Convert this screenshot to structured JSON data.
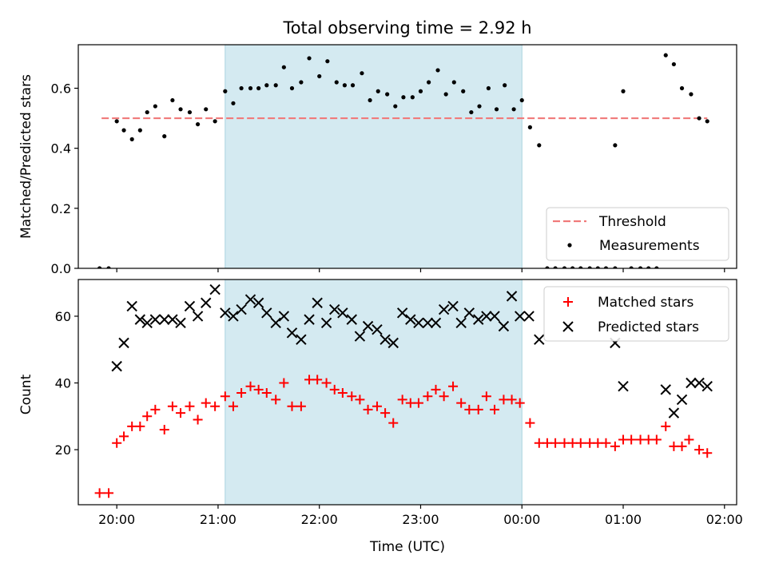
{
  "figure": {
    "title": "Total observing time = 2.92 h",
    "xlabel": "Time (UTC)",
    "colors": {
      "threshold": "#f07b7b",
      "band": "#d4eaf1",
      "band_edge": "#a9d2df",
      "measurement": "#000000",
      "matched": "#ff0000",
      "predicted": "#000000"
    }
  },
  "chart_data": [
    {
      "type": "scatter",
      "title": "Total observing time = 2.92 h",
      "xlabel": "",
      "ylabel": "Matched/Predicted stars",
      "xlim": [
        19.62,
        26.12
      ],
      "ylim": [
        0,
        0.745
      ],
      "x_ticks": [
        20,
        21,
        22,
        23,
        24,
        25,
        26
      ],
      "x_tick_labels": [],
      "y_ticks": [
        0,
        0.2,
        0.4,
        0.6
      ],
      "y_tick_labels": [
        "0.0",
        "0.2",
        "0.4",
        "0.6"
      ],
      "shaded_span": [
        21.07,
        24.0
      ],
      "grid": false,
      "legend_position": "lower right",
      "threshold": {
        "name": "Threshold",
        "value": 0.5,
        "x_range": [
          19.85,
          25.83
        ],
        "style": "dashed"
      },
      "series": [
        {
          "name": "Measurements",
          "marker": "dot",
          "points": [
            [
              19.83,
              0.0
            ],
            [
              19.92,
              0.0
            ],
            [
              20.0,
              0.49
            ],
            [
              20.07,
              0.46
            ],
            [
              20.15,
              0.43
            ],
            [
              20.23,
              0.46
            ],
            [
              20.3,
              0.52
            ],
            [
              20.38,
              0.54
            ],
            [
              20.47,
              0.44
            ],
            [
              20.55,
              0.56
            ],
            [
              20.63,
              0.53
            ],
            [
              20.72,
              0.52
            ],
            [
              20.8,
              0.48
            ],
            [
              20.88,
              0.53
            ],
            [
              20.97,
              0.49
            ],
            [
              21.07,
              0.59
            ],
            [
              21.15,
              0.55
            ],
            [
              21.23,
              0.6
            ],
            [
              21.32,
              0.6
            ],
            [
              21.4,
              0.6
            ],
            [
              21.48,
              0.61
            ],
            [
              21.57,
              0.61
            ],
            [
              21.65,
              0.67
            ],
            [
              21.73,
              0.6
            ],
            [
              21.82,
              0.62
            ],
            [
              21.9,
              0.7
            ],
            [
              22.0,
              0.64
            ],
            [
              22.08,
              0.69
            ],
            [
              22.17,
              0.62
            ],
            [
              22.25,
              0.61
            ],
            [
              22.33,
              0.61
            ],
            [
              22.42,
              0.65
            ],
            [
              22.5,
              0.56
            ],
            [
              22.58,
              0.59
            ],
            [
              22.67,
              0.58
            ],
            [
              22.75,
              0.54
            ],
            [
              22.83,
              0.57
            ],
            [
              22.92,
              0.57
            ],
            [
              23.0,
              0.59
            ],
            [
              23.08,
              0.62
            ],
            [
              23.17,
              0.66
            ],
            [
              23.25,
              0.58
            ],
            [
              23.33,
              0.62
            ],
            [
              23.42,
              0.59
            ],
            [
              23.5,
              0.52
            ],
            [
              23.58,
              0.54
            ],
            [
              23.67,
              0.6
            ],
            [
              23.75,
              0.53
            ],
            [
              23.83,
              0.61
            ],
            [
              23.92,
              0.53
            ],
            [
              24.0,
              0.56
            ],
            [
              24.08,
              0.47
            ],
            [
              24.17,
              0.41
            ],
            [
              24.25,
              0.0
            ],
            [
              24.33,
              0.0
            ],
            [
              24.42,
              0.0
            ],
            [
              24.5,
              0.0
            ],
            [
              24.58,
              0.0
            ],
            [
              24.67,
              0.0
            ],
            [
              24.75,
              0.0
            ],
            [
              24.83,
              0.0
            ],
            [
              24.92,
              0.0
            ],
            [
              24.92,
              0.41
            ],
            [
              25.0,
              0.59
            ],
            [
              25.08,
              0.0
            ],
            [
              25.17,
              0.0
            ],
            [
              25.25,
              0.0
            ],
            [
              25.33,
              0.0
            ],
            [
              25.42,
              0.71
            ],
            [
              25.5,
              0.68
            ],
            [
              25.58,
              0.6
            ],
            [
              25.67,
              0.58
            ],
            [
              25.75,
              0.5
            ],
            [
              25.83,
              0.49
            ]
          ]
        }
      ]
    },
    {
      "type": "scatter",
      "title": "",
      "xlabel": "Time (UTC)",
      "ylabel": "Count",
      "xlim": [
        19.62,
        26.12
      ],
      "ylim": [
        3.5,
        71
      ],
      "x_ticks": [
        20,
        21,
        22,
        23,
        24,
        25,
        26
      ],
      "x_tick_labels": [
        "20:00",
        "21:00",
        "22:00",
        "23:00",
        "00:00",
        "01:00",
        "02:00"
      ],
      "y_ticks": [
        20,
        40,
        60
      ],
      "y_tick_labels": [
        "20",
        "40",
        "60"
      ],
      "shaded_span": [
        21.07,
        24.0
      ],
      "grid": false,
      "legend_position": "upper right",
      "series": [
        {
          "name": "Matched stars",
          "marker": "plus",
          "points": [
            [
              19.83,
              7
            ],
            [
              19.92,
              7
            ],
            [
              20.0,
              22
            ],
            [
              20.07,
              24
            ],
            [
              20.15,
              27
            ],
            [
              20.23,
              27
            ],
            [
              20.3,
              30
            ],
            [
              20.38,
              32
            ],
            [
              20.47,
              26
            ],
            [
              20.55,
              33
            ],
            [
              20.63,
              31
            ],
            [
              20.72,
              33
            ],
            [
              20.8,
              29
            ],
            [
              20.88,
              34
            ],
            [
              20.97,
              33
            ],
            [
              21.07,
              36
            ],
            [
              21.15,
              33
            ],
            [
              21.23,
              37
            ],
            [
              21.32,
              39
            ],
            [
              21.4,
              38
            ],
            [
              21.48,
              37
            ],
            [
              21.57,
              35
            ],
            [
              21.65,
              40
            ],
            [
              21.73,
              33
            ],
            [
              21.82,
              33
            ],
            [
              21.9,
              41
            ],
            [
              21.98,
              41
            ],
            [
              22.07,
              40
            ],
            [
              22.15,
              38
            ],
            [
              22.23,
              37
            ],
            [
              22.32,
              36
            ],
            [
              22.4,
              35
            ],
            [
              22.48,
              32
            ],
            [
              22.57,
              33
            ],
            [
              22.65,
              31
            ],
            [
              22.73,
              28
            ],
            [
              22.82,
              35
            ],
            [
              22.9,
              34
            ],
            [
              22.98,
              34
            ],
            [
              23.07,
              36
            ],
            [
              23.15,
              38
            ],
            [
              23.23,
              36
            ],
            [
              23.32,
              39
            ],
            [
              23.4,
              34
            ],
            [
              23.48,
              32
            ],
            [
              23.57,
              32
            ],
            [
              23.65,
              36
            ],
            [
              23.73,
              32
            ],
            [
              23.82,
              35
            ],
            [
              23.9,
              35
            ],
            [
              23.98,
              34
            ],
            [
              24.08,
              28
            ],
            [
              24.17,
              22
            ],
            [
              24.25,
              22
            ],
            [
              24.33,
              22
            ],
            [
              24.42,
              22
            ],
            [
              24.5,
              22
            ],
            [
              24.58,
              22
            ],
            [
              24.67,
              22
            ],
            [
              24.75,
              22
            ],
            [
              24.83,
              22
            ],
            [
              24.92,
              21
            ],
            [
              25.0,
              23
            ],
            [
              25.08,
              23
            ],
            [
              25.17,
              23
            ],
            [
              25.25,
              23
            ],
            [
              25.33,
              23
            ],
            [
              25.42,
              27
            ],
            [
              25.5,
              21
            ],
            [
              25.58,
              21
            ],
            [
              25.65,
              23
            ],
            [
              25.75,
              20
            ],
            [
              25.83,
              19
            ]
          ]
        },
        {
          "name": "Predicted stars",
          "marker": "x",
          "points": [
            [
              20.0,
              45
            ],
            [
              20.07,
              52
            ],
            [
              20.15,
              63
            ],
            [
              20.23,
              59
            ],
            [
              20.3,
              58
            ],
            [
              20.38,
              59
            ],
            [
              20.47,
              59
            ],
            [
              20.55,
              59
            ],
            [
              20.63,
              58
            ],
            [
              20.72,
              63
            ],
            [
              20.8,
              60
            ],
            [
              20.88,
              64
            ],
            [
              20.97,
              68
            ],
            [
              21.07,
              61
            ],
            [
              21.15,
              60
            ],
            [
              21.23,
              62
            ],
            [
              21.32,
              65
            ],
            [
              21.4,
              64
            ],
            [
              21.48,
              61
            ],
            [
              21.57,
              58
            ],
            [
              21.65,
              60
            ],
            [
              21.73,
              55
            ],
            [
              21.82,
              53
            ],
            [
              21.9,
              59
            ],
            [
              21.98,
              64
            ],
            [
              22.07,
              58
            ],
            [
              22.15,
              62
            ],
            [
              22.23,
              61
            ],
            [
              22.32,
              59
            ],
            [
              22.4,
              54
            ],
            [
              22.48,
              57
            ],
            [
              22.57,
              56
            ],
            [
              22.65,
              53
            ],
            [
              22.73,
              52
            ],
            [
              22.82,
              61
            ],
            [
              22.9,
              59
            ],
            [
              22.98,
              58
            ],
            [
              23.07,
              58
            ],
            [
              23.15,
              58
            ],
            [
              23.23,
              62
            ],
            [
              23.32,
              63
            ],
            [
              23.4,
              58
            ],
            [
              23.48,
              61
            ],
            [
              23.57,
              59
            ],
            [
              23.65,
              60
            ],
            [
              23.73,
              60
            ],
            [
              23.82,
              57
            ],
            [
              23.9,
              66
            ],
            [
              23.98,
              60
            ],
            [
              24.07,
              60
            ],
            [
              24.17,
              53
            ],
            [
              24.92,
              52
            ],
            [
              25.0,
              39
            ],
            [
              25.42,
              38
            ],
            [
              25.5,
              31
            ],
            [
              25.58,
              35
            ],
            [
              25.67,
              40
            ],
            [
              25.75,
              40
            ],
            [
              25.83,
              39
            ]
          ]
        }
      ]
    }
  ]
}
